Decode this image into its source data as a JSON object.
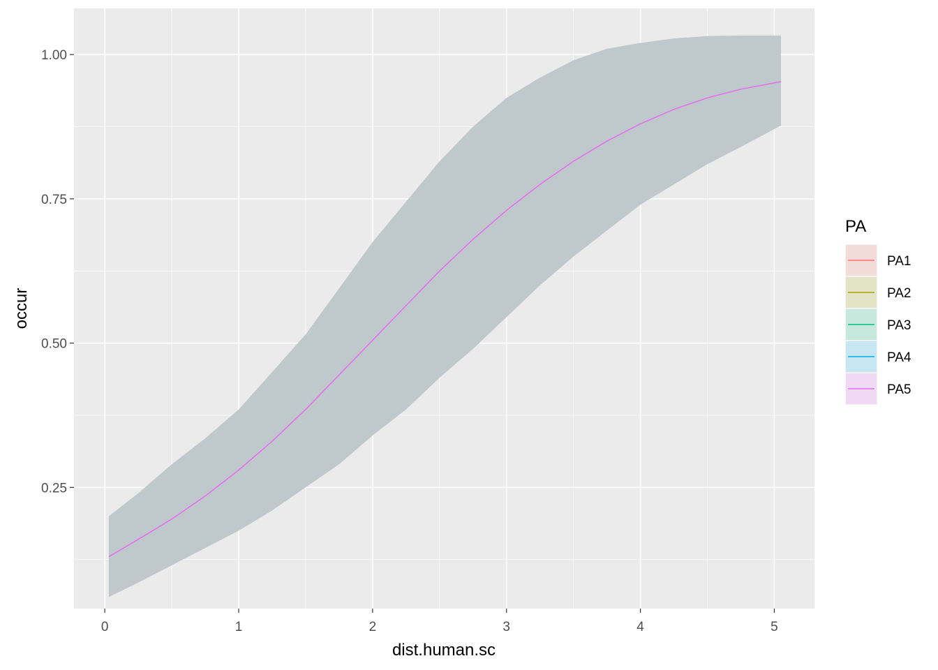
{
  "chart_data": {
    "type": "line",
    "xlabel": "dist.human.sc",
    "ylabel": "occur",
    "xlim": [
      -0.23,
      5.3
    ],
    "ylim": [
      0.04,
      1.08
    ],
    "x_ticks": [
      0,
      1,
      2,
      3,
      4,
      5
    ],
    "x_tick_labels": [
      "0",
      "1",
      "2",
      "3",
      "4",
      "5"
    ],
    "y_ticks": [
      0.25,
      0.5,
      0.75,
      1.0
    ],
    "y_tick_labels": [
      "0.25",
      "0.50",
      "0.75",
      "1.00"
    ],
    "grid": true,
    "panel_background": "#ebebeb",
    "ribbon_color": "#bfc8ca",
    "legend": {
      "title": "PA",
      "position": "right",
      "entries": [
        {
          "label": "PA1",
          "color": "#f8766d"
        },
        {
          "label": "PA2",
          "color": "#a3a500"
        },
        {
          "label": "PA3",
          "color": "#00bf7d"
        },
        {
          "label": "PA4",
          "color": "#00b0f6"
        },
        {
          "label": "PA5",
          "color": "#e76bf3"
        }
      ]
    },
    "series": [
      {
        "name": "PA5",
        "color": "#e76bf3",
        "x": [
          0.03,
          0.25,
          0.5,
          0.75,
          1.0,
          1.25,
          1.5,
          1.75,
          2.0,
          2.25,
          2.5,
          2.75,
          3.0,
          3.25,
          3.5,
          3.75,
          4.0,
          4.25,
          4.5,
          4.75,
          5.05
        ],
        "y": [
          0.13,
          0.16,
          0.195,
          0.235,
          0.28,
          0.33,
          0.385,
          0.445,
          0.505,
          0.565,
          0.625,
          0.68,
          0.73,
          0.775,
          0.815,
          0.85,
          0.88,
          0.905,
          0.925,
          0.94,
          0.953
        ],
        "lower": [
          0.06,
          0.085,
          0.115,
          0.145,
          0.175,
          0.21,
          0.25,
          0.29,
          0.34,
          0.385,
          0.44,
          0.49,
          0.545,
          0.6,
          0.65,
          0.695,
          0.74,
          0.775,
          0.81,
          0.84,
          0.877
        ],
        "upper": [
          0.2,
          0.24,
          0.29,
          0.335,
          0.385,
          0.45,
          0.515,
          0.595,
          0.675,
          0.745,
          0.815,
          0.875,
          0.925,
          0.96,
          0.99,
          1.01,
          1.02,
          1.028,
          1.032,
          1.033,
          1.033
        ]
      }
    ]
  }
}
